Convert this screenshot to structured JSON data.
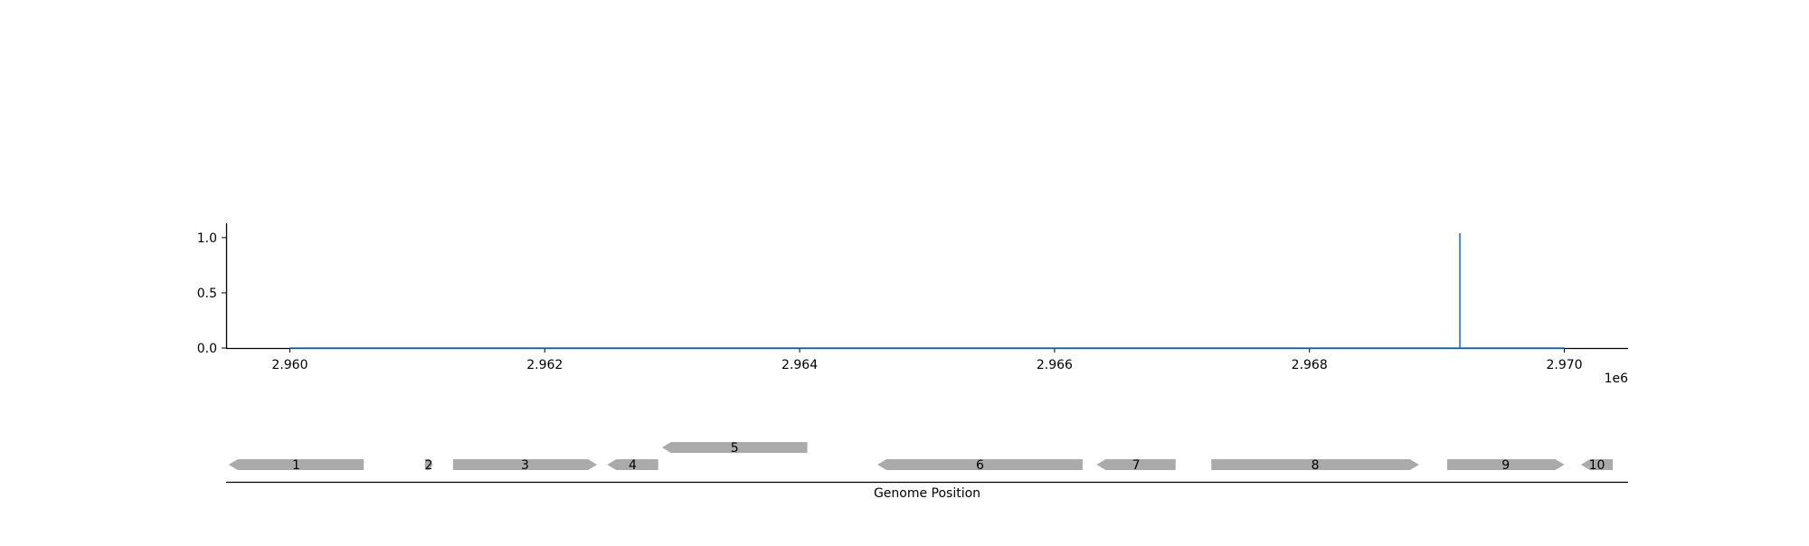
{
  "chart_data": [
    {
      "type": "line",
      "xlabel": "",
      "ylabel": "",
      "x_offset_label": "1e6",
      "x_ticks": [
        2.96,
        2.962,
        2.964,
        2.966,
        2.968,
        2.97
      ],
      "x_tick_labels": [
        "2.960",
        "2.962",
        "2.964",
        "2.966",
        "2.968",
        "2.970"
      ],
      "y_ticks": [
        0.0,
        0.5,
        1.0
      ],
      "y_tick_labels": [
        "0.0",
        "0.5",
        "1.0"
      ],
      "xlim": [
        2959500,
        2970500
      ],
      "ylim": [
        0,
        1.13
      ],
      "grid": false,
      "series": [
        {
          "color": "#1f77b4",
          "x": [
            2960000,
            2969180,
            2969180,
            2969180,
            2970000
          ],
          "y": [
            0,
            0,
            1.04,
            0,
            0
          ]
        }
      ]
    },
    {
      "type": "gene-track",
      "xlabel": "Genome Position",
      "xlim": [
        2959500,
        2970500
      ],
      "feature_color": "#aaaaaa",
      "features": [
        {
          "label": "1",
          "start": 2959520,
          "end": 2960580,
          "strand": -1,
          "row": 0
        },
        {
          "label": "2",
          "start": 2961060,
          "end": 2961120,
          "strand": 1,
          "row": 0
        },
        {
          "label": "3",
          "start": 2961280,
          "end": 2962410,
          "strand": 1,
          "row": 0
        },
        {
          "label": "4",
          "start": 2962490,
          "end": 2962890,
          "strand": -1,
          "row": 0
        },
        {
          "label": "5",
          "start": 2962920,
          "end": 2964060,
          "strand": -1,
          "row": 1
        },
        {
          "label": "6",
          "start": 2964610,
          "end": 2966220,
          "strand": -1,
          "row": 0
        },
        {
          "label": "7",
          "start": 2966330,
          "end": 2966950,
          "strand": -1,
          "row": 0
        },
        {
          "label": "8",
          "start": 2967230,
          "end": 2968860,
          "strand": 1,
          "row": 0
        },
        {
          "label": "9",
          "start": 2969080,
          "end": 2970000,
          "strand": 1,
          "row": 0
        },
        {
          "label": "10",
          "start": 2970130,
          "end": 2970380,
          "strand": -1,
          "row": 0
        }
      ]
    }
  ]
}
